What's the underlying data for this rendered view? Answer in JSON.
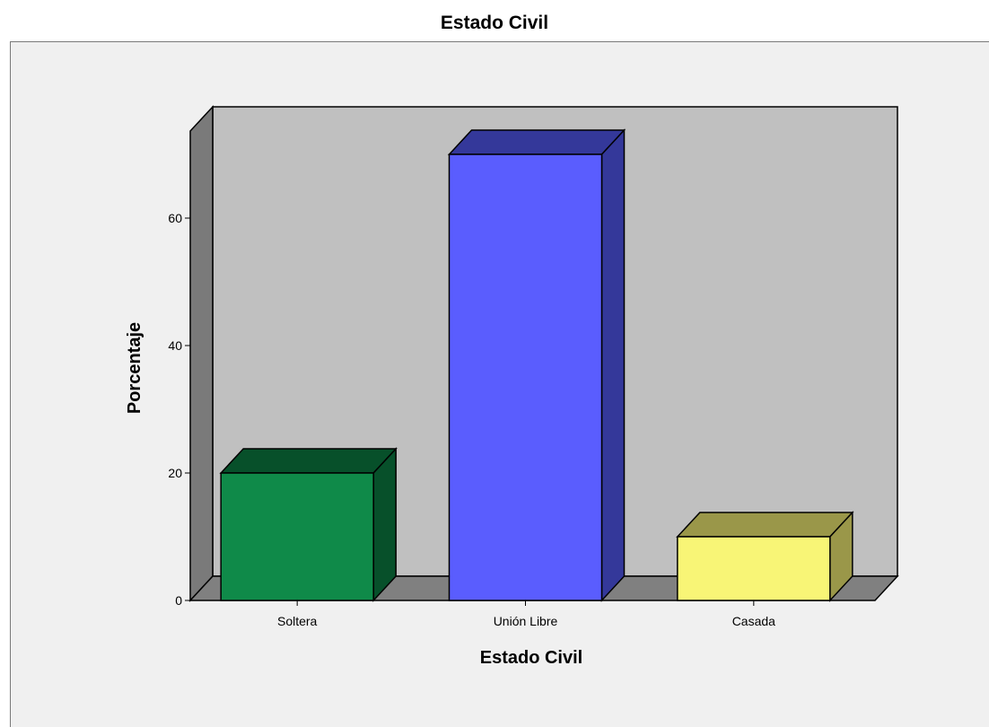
{
  "chart_data": {
    "type": "bar",
    "title": "Estado Civil",
    "xlabel": "Estado Civil",
    "ylabel": "Porcentaje",
    "categories": [
      "Soltera",
      "Unión Libre",
      "Casada"
    ],
    "values": [
      20,
      70,
      10
    ],
    "colors": [
      "#0f8a49",
      "#5a5dfe",
      "#f8f576"
    ],
    "side_colors": [
      "#07502a",
      "#34389a",
      "#9a9749"
    ],
    "y_ticks": [
      "0",
      "20",
      "40",
      "60"
    ],
    "ylim": [
      0,
      75
    ],
    "grid": false,
    "legend": "none",
    "view": "3d",
    "backdrop_color": "#c0c0c0",
    "floor_color": "#808080"
  }
}
